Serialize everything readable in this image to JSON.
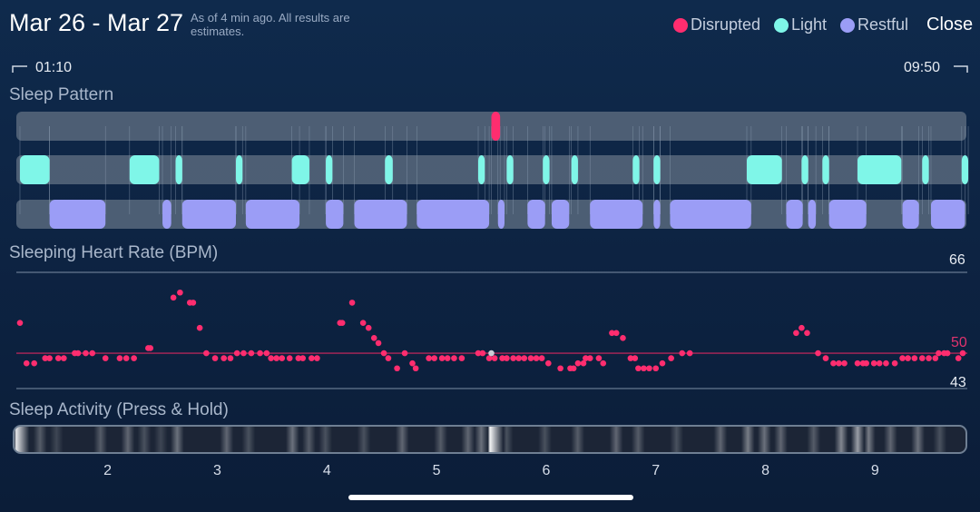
{
  "header": {
    "title": "Mar 26 - Mar 27",
    "as_of": "As of 4 min ago. All results are estimates.",
    "close_label": "Close"
  },
  "legend": [
    {
      "label": "Disrupted",
      "color": "#ff2d6f"
    },
    {
      "label": "Light",
      "color": "#7ff6e8"
    },
    {
      "label": "Restful",
      "color": "#9b9df6"
    }
  ],
  "range": {
    "start": "01:10",
    "end": "09:50"
  },
  "sleep_pattern": {
    "title": "Sleep Pattern",
    "time_start": 1.167,
    "time_end": 9.833,
    "disrupted": [
      [
        5.5,
        5.58
      ]
    ],
    "light": [
      [
        1.2,
        1.47
      ],
      [
        2.2,
        2.47
      ],
      [
        2.62,
        2.68
      ],
      [
        3.17,
        3.23
      ],
      [
        3.68,
        3.84
      ],
      [
        3.99,
        4.05
      ],
      [
        4.53,
        4.6
      ],
      [
        5.38,
        5.44
      ],
      [
        5.64,
        5.7
      ],
      [
        5.97,
        6.03
      ],
      [
        6.23,
        6.29
      ],
      [
        6.79,
        6.85
      ],
      [
        6.98,
        7.04
      ],
      [
        7.83,
        8.15
      ],
      [
        8.33,
        8.39
      ],
      [
        8.52,
        8.58
      ],
      [
        8.84,
        9.24
      ],
      [
        9.43,
        9.49
      ],
      [
        9.79,
        9.85
      ]
    ],
    "restful": [
      [
        1.47,
        1.98
      ],
      [
        2.5,
        2.58
      ],
      [
        2.68,
        3.17
      ],
      [
        3.26,
        3.75
      ],
      [
        3.99,
        4.15
      ],
      [
        4.25,
        4.73
      ],
      [
        4.82,
        5.48
      ],
      [
        5.56,
        5.62
      ],
      [
        5.83,
        5.99
      ],
      [
        6.05,
        6.21
      ],
      [
        6.4,
        6.88
      ],
      [
        6.98,
        7.04
      ],
      [
        7.13,
        7.87
      ],
      [
        8.19,
        8.34
      ],
      [
        8.39,
        8.46
      ],
      [
        8.58,
        8.92
      ],
      [
        9.25,
        9.4
      ],
      [
        9.51,
        9.82
      ]
    ]
  },
  "heart_rate": {
    "title": "Sleeping Heart Rate (BPM)",
    "max_label": "66",
    "avg_label": "50",
    "min_label": "43",
    "ymax": 66,
    "avg": 50,
    "ymin": 43,
    "samples": [
      [
        1.2,
        56
      ],
      [
        1.26,
        48
      ],
      [
        1.33,
        48
      ],
      [
        1.43,
        49
      ],
      [
        1.47,
        49
      ],
      [
        1.55,
        49
      ],
      [
        1.6,
        49
      ],
      [
        1.7,
        50
      ],
      [
        1.73,
        50
      ],
      [
        1.8,
        50
      ],
      [
        1.86,
        50
      ],
      [
        1.98,
        49
      ],
      [
        2.11,
        49
      ],
      [
        2.17,
        49
      ],
      [
        2.24,
        49
      ],
      [
        2.37,
        51
      ],
      [
        2.39,
        51
      ],
      [
        2.6,
        61
      ],
      [
        2.66,
        62
      ],
      [
        2.75,
        60
      ],
      [
        2.78,
        60
      ],
      [
        2.84,
        55
      ],
      [
        2.9,
        50
      ],
      [
        2.98,
        49
      ],
      [
        3.06,
        49
      ],
      [
        3.12,
        49
      ],
      [
        3.18,
        50
      ],
      [
        3.24,
        50
      ],
      [
        3.31,
        50
      ],
      [
        3.39,
        50
      ],
      [
        3.45,
        50
      ],
      [
        3.49,
        49
      ],
      [
        3.54,
        49
      ],
      [
        3.59,
        49
      ],
      [
        3.66,
        49
      ],
      [
        3.74,
        49
      ],
      [
        3.78,
        49
      ],
      [
        3.86,
        49
      ],
      [
        3.91,
        49
      ],
      [
        4.12,
        56
      ],
      [
        4.14,
        56
      ],
      [
        4.23,
        60
      ],
      [
        4.33,
        56
      ],
      [
        4.38,
        55
      ],
      [
        4.43,
        53
      ],
      [
        4.47,
        52
      ],
      [
        4.52,
        50
      ],
      [
        4.56,
        49
      ],
      [
        4.64,
        47
      ],
      [
        4.71,
        50
      ],
      [
        4.78,
        48
      ],
      [
        4.81,
        47
      ],
      [
        4.93,
        49
      ],
      [
        4.98,
        49
      ],
      [
        5.05,
        49
      ],
      [
        5.1,
        49
      ],
      [
        5.16,
        49
      ],
      [
        5.23,
        49
      ],
      [
        5.38,
        50
      ],
      [
        5.42,
        50
      ],
      [
        5.48,
        49
      ],
      [
        5.53,
        49
      ],
      [
        5.6,
        49
      ],
      [
        5.64,
        49
      ],
      [
        5.7,
        49
      ],
      [
        5.75,
        49
      ],
      [
        5.8,
        49
      ],
      [
        5.86,
        49
      ],
      [
        5.91,
        49
      ],
      [
        5.96,
        49
      ],
      [
        6.02,
        48
      ],
      [
        6.13,
        47
      ],
      [
        6.22,
        47
      ],
      [
        6.25,
        47
      ],
      [
        6.29,
        48
      ],
      [
        6.34,
        48
      ],
      [
        6.36,
        49
      ],
      [
        6.4,
        49
      ],
      [
        6.48,
        49
      ],
      [
        6.52,
        48
      ],
      [
        6.6,
        54
      ],
      [
        6.64,
        54
      ],
      [
        6.7,
        53
      ],
      [
        6.77,
        49
      ],
      [
        6.81,
        49
      ],
      [
        6.84,
        47
      ],
      [
        6.89,
        47
      ],
      [
        6.94,
        47
      ],
      [
        7.0,
        47
      ],
      [
        7.06,
        48
      ],
      [
        7.14,
        49
      ],
      [
        7.24,
        50
      ],
      [
        7.31,
        50
      ],
      [
        8.28,
        54
      ],
      [
        8.33,
        55
      ],
      [
        8.38,
        54
      ],
      [
        8.48,
        50
      ],
      [
        8.55,
        49
      ],
      [
        8.62,
        48
      ],
      [
        8.67,
        48
      ],
      [
        8.72,
        48
      ],
      [
        8.84,
        48
      ],
      [
        8.89,
        48
      ],
      [
        8.92,
        48
      ],
      [
        8.99,
        48
      ],
      [
        9.04,
        48
      ],
      [
        9.1,
        48
      ],
      [
        9.18,
        48
      ],
      [
        9.25,
        49
      ],
      [
        9.3,
        49
      ],
      [
        9.36,
        49
      ],
      [
        9.43,
        49
      ],
      [
        9.49,
        49
      ],
      [
        9.55,
        49
      ],
      [
        9.58,
        50
      ],
      [
        9.63,
        50
      ],
      [
        9.66,
        50
      ],
      [
        9.76,
        49
      ],
      [
        9.8,
        50
      ]
    ]
  },
  "activity": {
    "title": "Sleep Activity (Press & Hold)",
    "bands": [
      [
        1.18,
        0.9
      ],
      [
        1.4,
        0.25
      ],
      [
        1.55,
        0.15
      ],
      [
        1.95,
        0.25
      ],
      [
        2.2,
        0.3
      ],
      [
        2.35,
        0.2
      ],
      [
        2.5,
        0.15
      ],
      [
        2.65,
        0.35
      ],
      [
        3.1,
        0.3
      ],
      [
        3.3,
        0.2
      ],
      [
        3.7,
        0.35
      ],
      [
        3.85,
        0.25
      ],
      [
        4.0,
        0.2
      ],
      [
        4.35,
        0.2
      ],
      [
        4.7,
        0.3
      ],
      [
        5.05,
        0.25
      ],
      [
        5.3,
        0.3
      ],
      [
        5.42,
        0.35
      ],
      [
        5.5,
        0.95
      ],
      [
        5.65,
        0.2
      ],
      [
        6.0,
        0.2
      ],
      [
        6.3,
        0.25
      ],
      [
        6.65,
        0.3
      ],
      [
        6.85,
        0.25
      ],
      [
        7.2,
        0.2
      ],
      [
        7.6,
        0.3
      ],
      [
        7.85,
        0.4
      ],
      [
        8.0,
        0.35
      ],
      [
        8.15,
        0.3
      ],
      [
        8.45,
        0.25
      ],
      [
        8.7,
        0.45
      ],
      [
        8.85,
        0.55
      ],
      [
        8.95,
        0.4
      ],
      [
        9.15,
        0.3
      ],
      [
        9.4,
        0.35
      ],
      [
        9.6,
        0.2
      ]
    ],
    "time_start": 1.167,
    "time_end": 9.833
  },
  "x_axis": {
    "ticks": [
      "2",
      "3",
      "4",
      "5",
      "6",
      "7",
      "8",
      "9"
    ],
    "values": [
      2,
      3,
      4,
      5,
      6,
      7,
      8,
      9
    ],
    "min": 1.167,
    "max": 9.833
  }
}
